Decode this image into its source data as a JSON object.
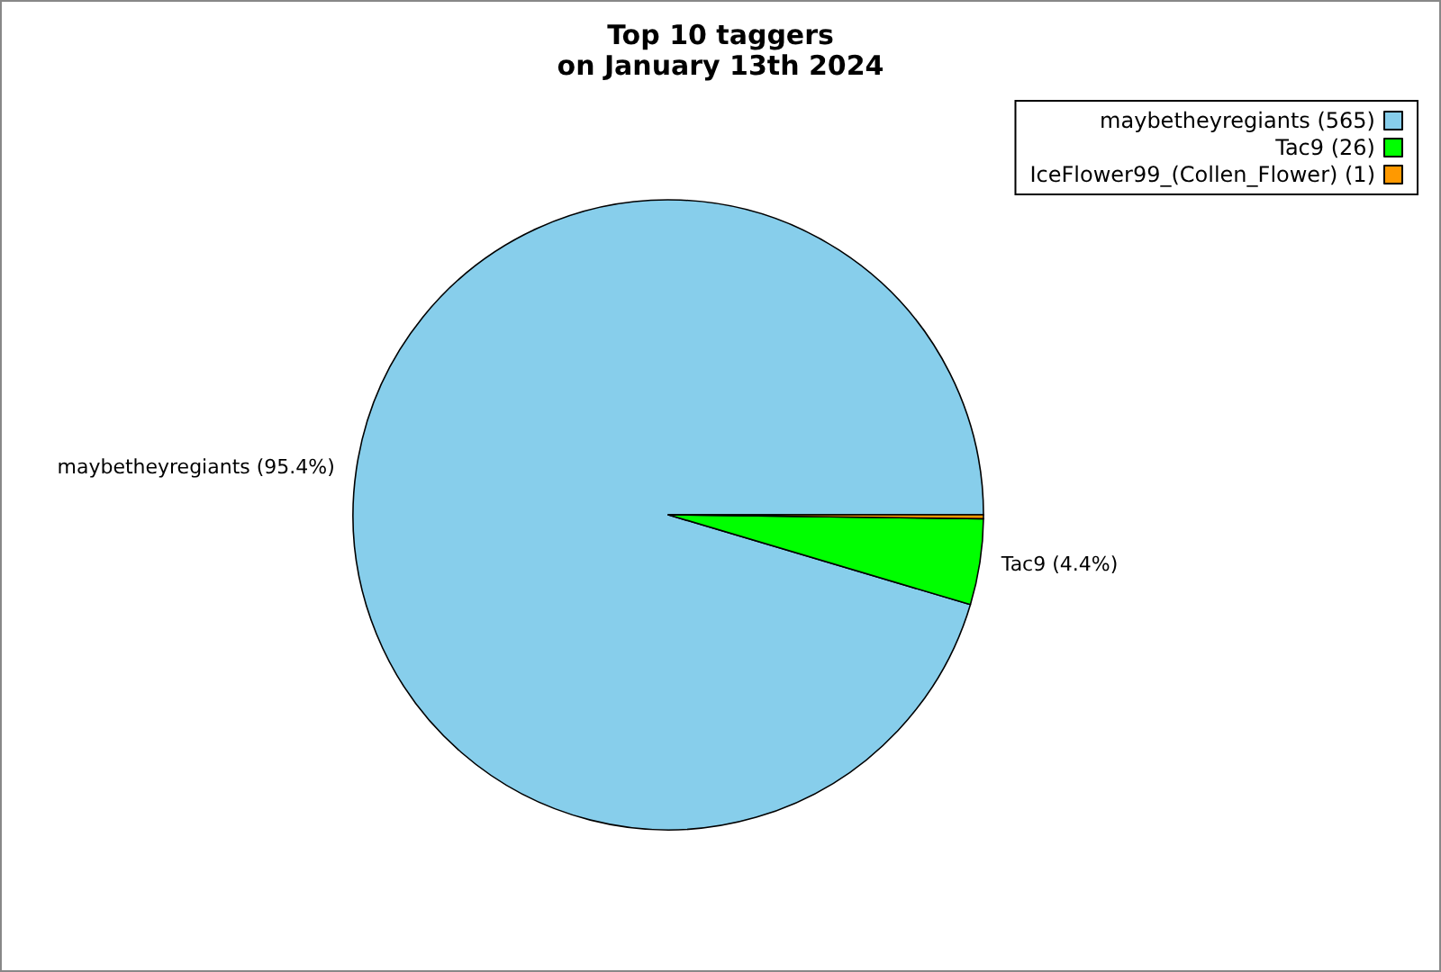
{
  "chart_data": {
    "type": "pie",
    "title": "Top 10 taggers\non January 13th 2024",
    "categories": [
      "maybetheyregiants (565)",
      "Tac9 (26)",
      "IceFlower99_(Collen_Flower) (1)"
    ],
    "values": [
      95.4,
      4.4,
      0.2
    ],
    "colors": [
      "#87ceeb",
      "#00ff00",
      "#ff9900"
    ],
    "value_labels": [
      "maybetheyregiants (95.4%)",
      "Tac9 (4.4%)",
      null
    ],
    "legend": "top right"
  }
}
